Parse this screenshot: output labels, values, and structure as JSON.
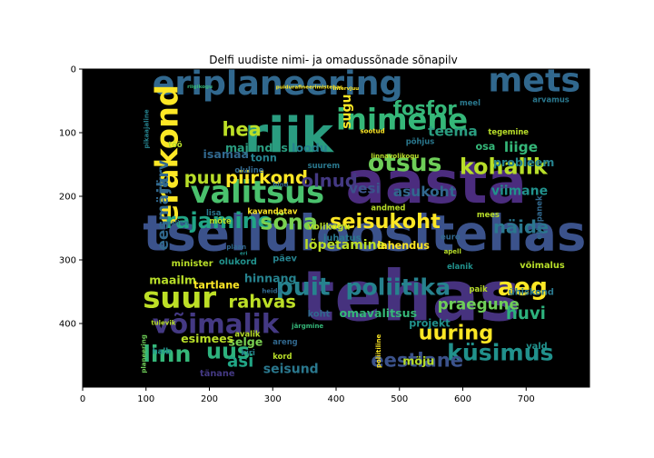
{
  "chart_data": {
    "type": "image",
    "title": "Delfi uudiste nimi- ja omadussõnade sõnapilv",
    "xticks": [
      0,
      100,
      200,
      300,
      400,
      500,
      600,
      700
    ],
    "yticks": [
      0,
      100,
      200,
      300,
      400
    ],
    "xlim": [
      0,
      800
    ],
    "ylim": [
      500,
      0
    ],
    "background": "#000000",
    "words": [
      {
        "text": "tehas",
        "x": 345,
        "y": 395,
        "size": 110,
        "color": "#46327e"
      },
      {
        "text": "tselluloositehas",
        "x": 95,
        "y": 285,
        "size": 78,
        "color": "#3b528b"
      },
      {
        "text": "aasta",
        "x": 415,
        "y": 210,
        "size": 92,
        "color": "#4b2c7e"
      },
      {
        "text": "riik",
        "x": 255,
        "y": 130,
        "size": 76,
        "color": "#2a9d80"
      },
      {
        "text": "eriplaneering",
        "x": 110,
        "y": 40,
        "size": 52,
        "color": "#31688e"
      },
      {
        "text": "valitsus",
        "x": 170,
        "y": 210,
        "size": 48,
        "color": "#4ac16d"
      },
      {
        "text": "inimene",
        "x": 400,
        "y": 95,
        "size": 46,
        "color": "#35b779"
      },
      {
        "text": "mets",
        "x": 640,
        "y": 35,
        "size": 52,
        "color": "#31688e"
      },
      {
        "text": "erakond",
        "x": 150,
        "y": 245,
        "size": 48,
        "color": "#fde725",
        "vertical": true
      },
      {
        "text": "suur",
        "x": 95,
        "y": 375,
        "size": 46,
        "color": "#bddf26"
      },
      {
        "text": "võimalik",
        "x": 110,
        "y": 415,
        "size": 42,
        "color": "#443983"
      },
      {
        "text": "poliitika",
        "x": 415,
        "y": 355,
        "size": 36,
        "color": "#26828e"
      },
      {
        "text": "puit",
        "x": 305,
        "y": 355,
        "size": 38,
        "color": "#26828e"
      },
      {
        "text": "otsus",
        "x": 450,
        "y": 160,
        "size": 38,
        "color": "#6ece58"
      },
      {
        "text": "kohalik",
        "x": 595,
        "y": 165,
        "size": 34,
        "color": "#b8de29"
      },
      {
        "text": "rajamine",
        "x": 130,
        "y": 250,
        "size": 34,
        "color": "#21a585"
      },
      {
        "text": "sõna",
        "x": 280,
        "y": 252,
        "size": 34,
        "color": "#7ad151"
      },
      {
        "text": "seisukoht",
        "x": 390,
        "y": 250,
        "size": 32,
        "color": "#fde725"
      },
      {
        "text": "aeg",
        "x": 655,
        "y": 355,
        "size": 38,
        "color": "#fde725"
      },
      {
        "text": "linn",
        "x": 95,
        "y": 460,
        "size": 36,
        "color": "#35b779"
      },
      {
        "text": "uus",
        "x": 195,
        "y": 455,
        "size": 34,
        "color": "#2db27d"
      },
      {
        "text": "küsimus",
        "x": 575,
        "y": 458,
        "size": 36,
        "color": "#21918c"
      },
      {
        "text": "eestlane",
        "x": 455,
        "y": 468,
        "size": 30,
        "color": "#3b528b"
      },
      {
        "text": "uuring",
        "x": 530,
        "y": 425,
        "size": 32,
        "color": "#fde725"
      },
      {
        "text": "hea",
        "x": 220,
        "y": 105,
        "size": 30,
        "color": "#bddf26"
      },
      {
        "text": "fosfor",
        "x": 490,
        "y": 72,
        "size": 30,
        "color": "#35b779"
      },
      {
        "text": "piirkond",
        "x": 225,
        "y": 180,
        "size": 28,
        "color": "#fde725"
      },
      {
        "text": "olnud",
        "x": 345,
        "y": 185,
        "size": 28,
        "color": "#443983"
      },
      {
        "text": "puu",
        "x": 160,
        "y": 180,
        "size": 28,
        "color": "#b8de29"
      },
      {
        "text": "rahvas",
        "x": 230,
        "y": 375,
        "size": 28,
        "color": "#bddf26"
      },
      {
        "text": "näide",
        "x": 648,
        "y": 258,
        "size": 28,
        "color": "#2a788e"
      },
      {
        "text": "huvi",
        "x": 668,
        "y": 393,
        "size": 26,
        "color": "#2db27d"
      },
      {
        "text": "praegune",
        "x": 560,
        "y": 378,
        "size": 24,
        "color": "#6ece58"
      },
      {
        "text": "asi",
        "x": 228,
        "y": 468,
        "size": 26,
        "color": "#21a585"
      },
      {
        "text": "teema",
        "x": 545,
        "y": 105,
        "size": 22,
        "color": "#2a9d80"
      },
      {
        "text": "eesmärk",
        "x": 135,
        "y": 285,
        "size": 24,
        "color": "#31688e",
        "vertical": true
      },
      {
        "text": "järv",
        "x": 135,
        "y": 195,
        "size": 24,
        "color": "#31688e",
        "vertical": true
      },
      {
        "text": "majandus",
        "x": 225,
        "y": 130,
        "size": 18,
        "color": "#2a9d80"
      },
      {
        "text": "loodu",
        "x": 330,
        "y": 130,
        "size": 18,
        "color": "#26828e"
      },
      {
        "text": "liige",
        "x": 665,
        "y": 130,
        "size": 22,
        "color": "#35b779"
      },
      {
        "text": "probleem",
        "x": 648,
        "y": 153,
        "size": 18,
        "color": "#26828e"
      },
      {
        "text": "viimane",
        "x": 645,
        "y": 198,
        "size": 20,
        "color": "#21918c"
      },
      {
        "text": "vesi",
        "x": 420,
        "y": 195,
        "size": 22,
        "color": "#3b528b"
      },
      {
        "text": "asukoht",
        "x": 490,
        "y": 200,
        "size": 22,
        "color": "#31688e"
      },
      {
        "text": "lõpetamine",
        "x": 350,
        "y": 283,
        "size": 20,
        "color": "#bddf26"
      },
      {
        "text": "lahendus",
        "x": 465,
        "y": 283,
        "size": 16,
        "color": "#fde725"
      },
      {
        "text": "seisund",
        "x": 285,
        "y": 478,
        "size": 20,
        "color": "#2a788e"
      },
      {
        "text": "omavalitsus",
        "x": 405,
        "y": 390,
        "size": 18,
        "color": "#35b779"
      },
      {
        "text": "selge",
        "x": 230,
        "y": 435,
        "size": 18,
        "color": "#7ad151"
      },
      {
        "text": "esimees",
        "x": 155,
        "y": 430,
        "size": 18,
        "color": "#b8de29"
      },
      {
        "text": "maailm",
        "x": 105,
        "y": 338,
        "size": 18,
        "color": "#b8de29"
      },
      {
        "text": "tartlane",
        "x": 175,
        "y": 345,
        "size": 16,
        "color": "#fde725"
      },
      {
        "text": "minister",
        "x": 140,
        "y": 310,
        "size": 14,
        "color": "#b8de29"
      },
      {
        "text": "hinnang",
        "x": 255,
        "y": 335,
        "size": 18,
        "color": "#26828e"
      },
      {
        "text": "isamaa",
        "x": 190,
        "y": 140,
        "size": 18,
        "color": "#31688e"
      },
      {
        "text": "tonn",
        "x": 265,
        "y": 145,
        "size": 16,
        "color": "#26828e"
      },
      {
        "text": "juhatus",
        "x": 380,
        "y": 270,
        "size": 14,
        "color": "#2a788e"
      },
      {
        "text": "võimalus",
        "x": 690,
        "y": 313,
        "size": 14,
        "color": "#b8de29"
      },
      {
        "text": "ühiskond",
        "x": 672,
        "y": 355,
        "size": 14,
        "color": "#2a788e"
      },
      {
        "text": "projekt",
        "x": 515,
        "y": 405,
        "size": 16,
        "color": "#21918c"
      },
      {
        "text": "möju",
        "x": 505,
        "y": 465,
        "size": 18,
        "color": "#b8de29"
      },
      {
        "text": "vald",
        "x": 700,
        "y": 440,
        "size": 14,
        "color": "#21918c"
      },
      {
        "text": "osa",
        "x": 620,
        "y": 127,
        "size": 16,
        "color": "#35b779"
      },
      {
        "text": "koht",
        "x": 355,
        "y": 389,
        "size": 14,
        "color": "#31688e"
      },
      {
        "text": "päev",
        "x": 300,
        "y": 302,
        "size": 14,
        "color": "#26828e"
      },
      {
        "text": "kavandatav",
        "x": 260,
        "y": 228,
        "size": 12,
        "color": "#fde725"
      },
      {
        "text": "volikogu",
        "x": 355,
        "y": 252,
        "size": 14,
        "color": "#b8de29"
      },
      {
        "text": "olukord",
        "x": 215,
        "y": 307,
        "size": 14,
        "color": "#21918c"
      },
      {
        "text": "tänane",
        "x": 185,
        "y": 483,
        "size": 14,
        "color": "#443983"
      },
      {
        "text": "suurem",
        "x": 355,
        "y": 156,
        "size": 12,
        "color": "#2a788e"
      },
      {
        "text": "põhjus",
        "x": 510,
        "y": 118,
        "size": 12,
        "color": "#2a788e"
      },
      {
        "text": "tegemine",
        "x": 640,
        "y": 103,
        "size": 12,
        "color": "#b8de29"
      },
      {
        "text": "arvamus",
        "x": 710,
        "y": 52,
        "size": 12,
        "color": "#2a788e"
      },
      {
        "text": "meel",
        "x": 595,
        "y": 57,
        "size": 12,
        "color": "#2a788e"
      },
      {
        "text": "töö",
        "x": 135,
        "y": 123,
        "size": 12,
        "color": "#b8de29"
      },
      {
        "text": "oluline",
        "x": 240,
        "y": 163,
        "size": 12,
        "color": "#31688e"
      },
      {
        "text": "hind",
        "x": 300,
        "y": 185,
        "size": 10,
        "color": "#31688e"
      },
      {
        "text": "andmed",
        "x": 455,
        "y": 222,
        "size": 12,
        "color": "#b8de29"
      },
      {
        "text": "apell",
        "x": 570,
        "y": 290,
        "size": 10,
        "color": "#b8de29"
      },
      {
        "text": "elanik",
        "x": 575,
        "y": 314,
        "size": 12,
        "color": "#21918c"
      },
      {
        "text": "paik",
        "x": 610,
        "y": 350,
        "size": 12,
        "color": "#b8de29"
      },
      {
        "text": "mees",
        "x": 622,
        "y": 233,
        "size": 12,
        "color": "#b8de29"
      },
      {
        "text": "euro",
        "x": 565,
        "y": 268,
        "size": 12,
        "color": "#31688e"
      },
      {
        "text": "kord",
        "x": 300,
        "y": 456,
        "size": 12,
        "color": "#b8de29"
      },
      {
        "text": "kiri",
        "x": 250,
        "y": 450,
        "size": 12,
        "color": "#26828e"
      },
      {
        "text": "avalik",
        "x": 240,
        "y": 421,
        "size": 12,
        "color": "#b8de29"
      },
      {
        "text": "areng",
        "x": 300,
        "y": 433,
        "size": 12,
        "color": "#31688e"
      },
      {
        "text": "halb",
        "x": 110,
        "y": 448,
        "size": 12,
        "color": "#21918c"
      },
      {
        "text": "mõte",
        "x": 200,
        "y": 243,
        "size": 12,
        "color": "#b8de29"
      },
      {
        "text": "pealinn",
        "x": 125,
        "y": 245,
        "size": 10,
        "color": "#31688e"
      },
      {
        "text": "lisa",
        "x": 195,
        "y": 230,
        "size": 12,
        "color": "#2a788e"
      },
      {
        "text": "heide",
        "x": 283,
        "y": 352,
        "size": 10,
        "color": "#31688e"
      },
      {
        "text": "eri",
        "x": 248,
        "y": 292,
        "size": 8,
        "color": "#21918c"
      },
      {
        "text": "plaan",
        "x": 227,
        "y": 283,
        "size": 10,
        "color": "#31688e"
      },
      {
        "text": "järgmine",
        "x": 330,
        "y": 407,
        "size": 10,
        "color": "#35b779"
      },
      {
        "text": "sugu",
        "x": 423,
        "y": 94,
        "size": 20,
        "color": "#fde725",
        "vertical": true
      },
      {
        "text": "riigikogu",
        "x": 165,
        "y": 30,
        "size": 8,
        "color": "#35b779"
      },
      {
        "text": "tulevik",
        "x": 108,
        "y": 402,
        "size": 10,
        "color": "#b8de29"
      },
      {
        "text": "planeering",
        "x": 100,
        "y": 478,
        "size": 10,
        "color": "#6ece58",
        "vertical": true
      },
      {
        "text": "ettepanek",
        "x": 725,
        "y": 268,
        "size": 12,
        "color": "#31688e",
        "vertical": true
      },
      {
        "text": "linnavolikogu",
        "x": 455,
        "y": 140,
        "size": 10,
        "color": "#b8de29"
      },
      {
        "text": "poliitiline",
        "x": 470,
        "y": 470,
        "size": 10,
        "color": "#fde725",
        "vertical": true
      },
      {
        "text": "sootud",
        "x": 438,
        "y": 101,
        "size": 10,
        "color": "#fde725"
      },
      {
        "text": "intervjuu",
        "x": 395,
        "y": 33,
        "size": 8,
        "color": "#fde725"
      },
      {
        "text": "puidurafineerimistehas",
        "x": 305,
        "y": 31,
        "size": 8,
        "color": "#fde725"
      },
      {
        "text": "pikaajaline",
        "x": 104,
        "y": 125,
        "size": 10,
        "color": "#26828e",
        "vertical": true
      }
    ]
  }
}
